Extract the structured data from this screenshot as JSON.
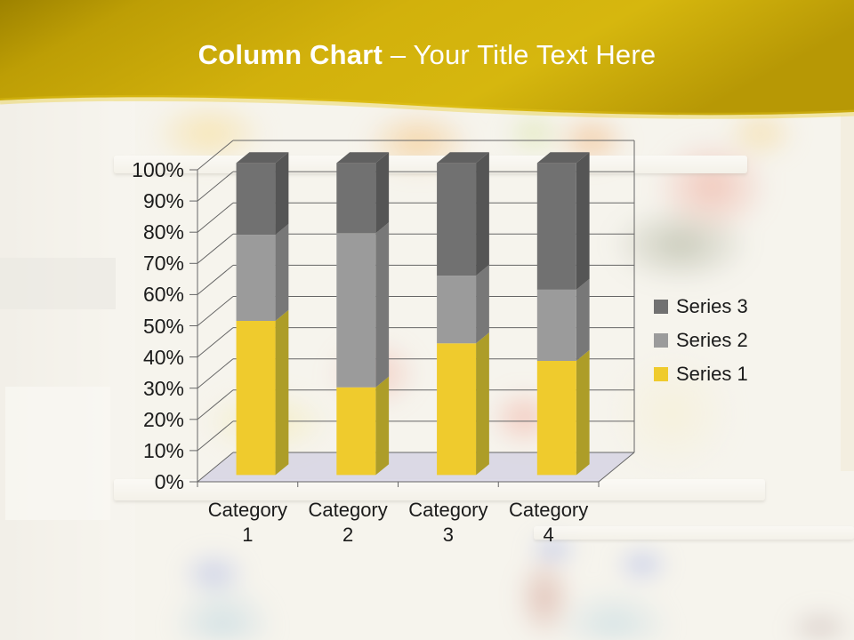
{
  "slide": {
    "title_bold": "Column Chart",
    "title_rest": " – Your Title Text Here"
  },
  "colors": {
    "banner_gold": "#CFA90A",
    "banner_gold_dark": "#A08400",
    "banner_highlight": "#E8C81E",
    "title_text": "#FFFFFF",
    "axis_text": "#1B1B1B",
    "gridline": "#666666",
    "floor": "#C5C2DE"
  },
  "chart_data": {
    "type": "bar",
    "variant": "3d-column-100pct-stacked",
    "title": "",
    "xlabel": "",
    "ylabel": "",
    "units": "%",
    "ylim": [
      0,
      100
    ],
    "grid": true,
    "legend_position": "right",
    "legend": [
      "Series 3",
      "Series 2",
      "Series 1"
    ],
    "categories": [
      "Category 1",
      "Category 2",
      "Category 3",
      "Category 4"
    ],
    "y_ticks": [
      "0%",
      "10%",
      "20%",
      "30%",
      "40%",
      "50%",
      "60%",
      "70%",
      "80%",
      "90%",
      "100%"
    ],
    "series": [
      {
        "name": "Series 1",
        "color": "#EFCB2D",
        "side": "#AD9D28",
        "values": [
          49.4,
          28.1,
          42.2,
          36.6
        ]
      },
      {
        "name": "Series 2",
        "color": "#9B9B9B",
        "side": "#787878",
        "values": [
          27.6,
          49.4,
          21.7,
          22.8
        ]
      },
      {
        "name": "Series 3",
        "color": "#717171",
        "side": "#555555",
        "top": "#606060",
        "values": [
          23.0,
          22.5,
          36.1,
          40.6
        ]
      }
    ]
  }
}
